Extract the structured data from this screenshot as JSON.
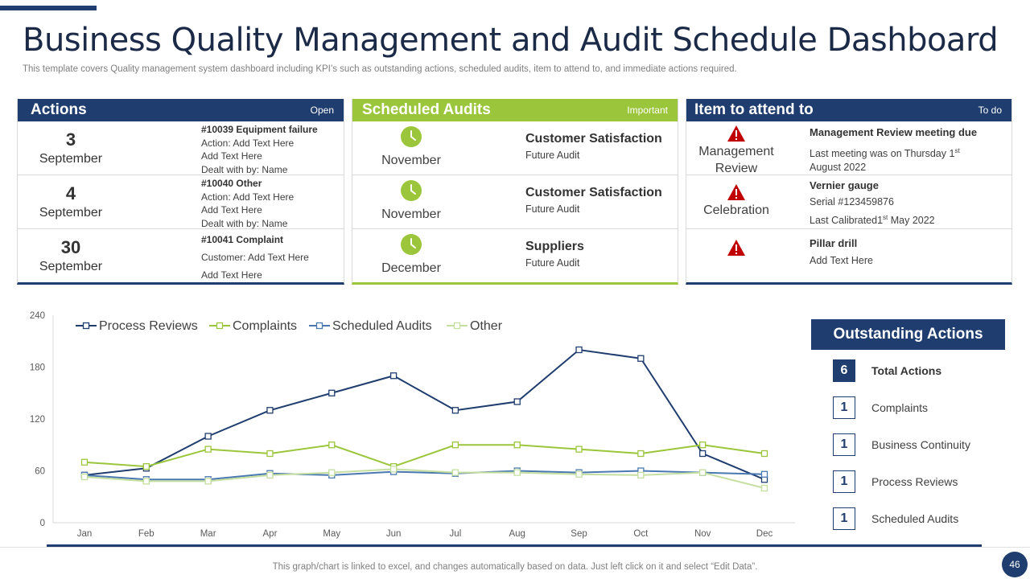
{
  "title": "Business Quality Management and Audit Schedule Dashboard",
  "subtitle": "This template covers Quality management system dashboard including KPI’s such as outstanding actions, scheduled audits, item to attend to, and immediate actions required.",
  "actions": {
    "title": "Actions",
    "tag": "Open",
    "rows": [
      {
        "day": "3",
        "month": "September",
        "lines": [
          "#10039 Equipment  failure",
          "Action: Add Text Here",
          "Add Text Here",
          "Dealt with by: Name"
        ]
      },
      {
        "day": "4",
        "month": "September",
        "lines": [
          "#10040 Other",
          "Action: Add Text Here",
          "Add Text Here",
          "Dealt with by: Name"
        ]
      },
      {
        "day": "30",
        "month": "September",
        "lines": [
          "#10041 Complaint",
          "Customer:  Add Text Here",
          "Add Text Here"
        ]
      }
    ]
  },
  "scheduled": {
    "title": "Scheduled Audits",
    "tag": "Important",
    "rows": [
      {
        "month": "November",
        "title": "Customer Satisfaction",
        "sub": "Future Audit"
      },
      {
        "month": "November",
        "title": "Customer Satisfaction",
        "sub": "Future Audit"
      },
      {
        "month": "December",
        "title": "Suppliers",
        "sub": "Future Audit"
      }
    ]
  },
  "items": {
    "title": "Item to attend to",
    "tag": "To do",
    "rows": [
      {
        "label1": "Management",
        "label2": "Review",
        "head": "Management Review meeting due",
        "line1a": "Last meeting was on Thursday  1",
        "line1sup": "st",
        "line2": "August 2022"
      },
      {
        "label1": "Celebration",
        "label2": "",
        "head": "Vernier gauge",
        "line1a": "Serial #123459876",
        "line2a": "Last Calibrated1",
        "line2sup": "st",
        "line2b": " May 2022"
      },
      {
        "label1": "",
        "label2": "",
        "head": "Pillar drill",
        "line1a": "Add Text  Here"
      }
    ]
  },
  "outstanding": {
    "title": "Outstanding Actions",
    "items": [
      {
        "count": "6",
        "label": "Total Actions"
      },
      {
        "count": "1",
        "label": "Complaints"
      },
      {
        "count": "1",
        "label": "Business Continuity"
      },
      {
        "count": "1",
        "label": "Process Reviews"
      },
      {
        "count": "1",
        "label": "Scheduled Audits"
      }
    ]
  },
  "colors": {
    "navy": "#1f3d6e",
    "lime": "#9bc63b",
    "blue": "#4a78b0",
    "lightgreen": "#c5dfa0",
    "warn": "#c00000"
  },
  "chart_data": {
    "type": "line",
    "categories": [
      "Jan",
      "Feb",
      "Mar",
      "Apr",
      "May",
      "Jun",
      "Jul",
      "Aug",
      "Sep",
      "Oct",
      "Nov",
      "Dec"
    ],
    "ylim": [
      0,
      240
    ],
    "yticks": [
      0,
      60,
      120,
      180,
      240
    ],
    "legend_position": "top-left",
    "series": [
      {
        "name": "Process Reviews",
        "color": "#1f3d6e",
        "values": [
          55,
          63,
          100,
          130,
          150,
          170,
          130,
          140,
          200,
          190,
          80,
          50
        ]
      },
      {
        "name": "Complaints",
        "color": "#9bc63b",
        "values": [
          70,
          65,
          85,
          80,
          90,
          65,
          90,
          90,
          85,
          80,
          90,
          80
        ]
      },
      {
        "name": "Scheduled Audits",
        "color": "#4a78b0",
        "values": [
          55,
          50,
          50,
          57,
          55,
          59,
          57,
          60,
          58,
          60,
          58,
          56
        ]
      },
      {
        "name": "Other",
        "color": "#c5dfa0",
        "values": [
          53,
          48,
          48,
          55,
          58,
          62,
          58,
          58,
          56,
          55,
          58,
          40
        ]
      }
    ]
  },
  "footer": {
    "note": "This graph/chart is linked to excel,  and changes automatically based on data. Just left click on it and select “Edit Data”.",
    "page": "46"
  }
}
